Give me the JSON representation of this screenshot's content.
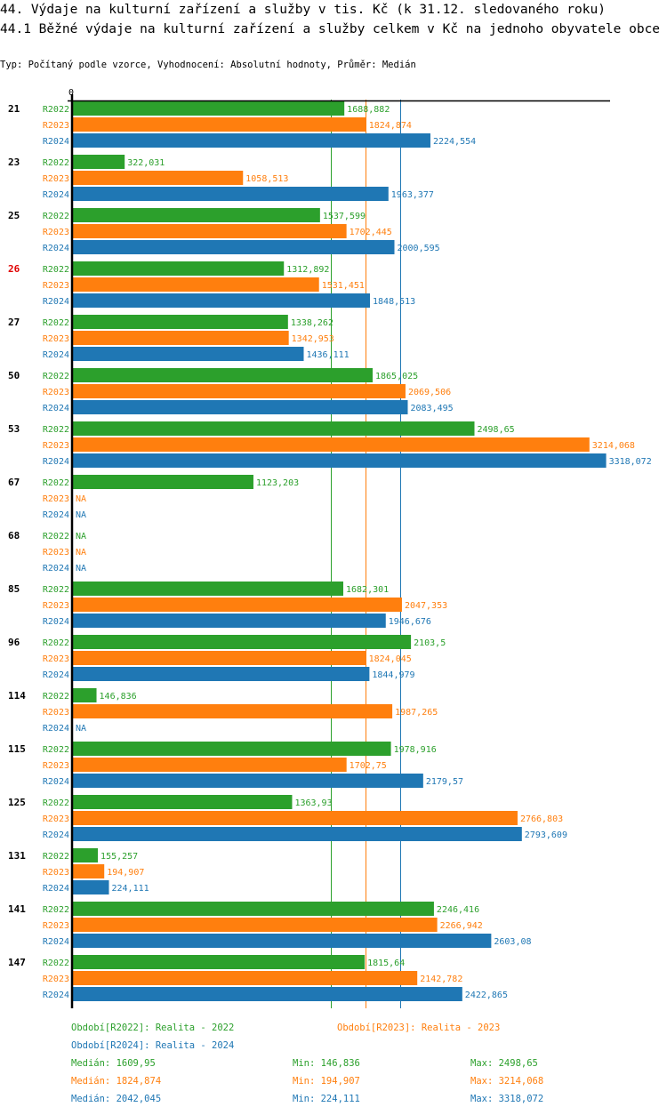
{
  "header": {
    "title": "44. Výdaje na kulturní zařízení a služby v tis. Kč (k 31.12. sledovaného roku)",
    "subtitle_title": "44.1 Běžné výdaje na kulturní zařízení a služby celkem v Kč na jednoho obyvatele obce",
    "info": "Typ: Počítaný podle vzorce, Vyhodnocení: Absolutní hodnoty, Průměr: Medián"
  },
  "colors": {
    "R2022": "#2ca02c",
    "R2023": "#ff7f0e",
    "R2024": "#1f77b4",
    "highlight_category": "#e00000",
    "axis": "#000000"
  },
  "chart_data": {
    "type": "bar",
    "orientation": "horizontal",
    "title": "44.1 Běžné výdaje na kulturní zařízení a služby celkem v Kč na jednoho obyvatele obce",
    "xlabel": "",
    "ylabel": "",
    "x_tick_labels": [
      "0"
    ],
    "xlim": [
      0,
      3318.072
    ],
    "grid": false,
    "highlighted_category": "26",
    "categories": [
      "21",
      "23",
      "25",
      "26",
      "27",
      "50",
      "53",
      "67",
      "68",
      "85",
      "96",
      "114",
      "115",
      "125",
      "131",
      "141",
      "147"
    ],
    "series": [
      {
        "name": "R2022",
        "label": "R2022",
        "values": [
          1688.882,
          322.031,
          1537.599,
          1312.892,
          1338.262,
          1865.025,
          2498.65,
          1123.203,
          null,
          1682.301,
          2103.5,
          146.836,
          1978.916,
          1363.93,
          155.257,
          2246.416,
          1815.64
        ],
        "display": [
          "1688,882",
          "322,031",
          "1537,599",
          "1312,892",
          "1338,262",
          "1865,025",
          "2498,65",
          "1123,203",
          "NA",
          "1682,301",
          "2103,5",
          "146,836",
          "1978,916",
          "1363,93",
          "155,257",
          "2246,416",
          "1815,64"
        ]
      },
      {
        "name": "R2023",
        "label": "R2023",
        "values": [
          1824.874,
          1058.513,
          1702.445,
          1531.451,
          1342.953,
          2069.506,
          3214.068,
          null,
          null,
          2047.353,
          1824.045,
          1987.265,
          1702.75,
          2766.803,
          194.907,
          2266.942,
          2142.782
        ],
        "display": [
          "1824,874",
          "1058,513",
          "1702,445",
          "1531,451",
          "1342,953",
          "2069,506",
          "3214,068",
          "NA",
          "NA",
          "2047,353",
          "1824,045",
          "1987,265",
          "1702,75",
          "2766,803",
          "194,907",
          "2266,942",
          "2142,782"
        ]
      },
      {
        "name": "R2024",
        "label": "R2024",
        "values": [
          2224.554,
          1963.377,
          2000.595,
          1848.513,
          1436.111,
          2083.495,
          3318.072,
          null,
          null,
          1946.676,
          1844.979,
          null,
          2179.57,
          2793.609,
          224.111,
          2603.08,
          2422.865
        ],
        "display": [
          "2224,554",
          "1963,377",
          "2000,595",
          "1848,513",
          "1436,111",
          "2083,495",
          "3318,072",
          "NA",
          "NA",
          "1946,676",
          "1844,979",
          "NA",
          "2179,57",
          "2793,609",
          "224,111",
          "2603,08",
          "2422,865"
        ]
      }
    ],
    "reference_lines": [
      {
        "series": "R2022",
        "type": "median",
        "value": 1609.95
      },
      {
        "series": "R2023",
        "type": "median",
        "value": 1824.874
      },
      {
        "series": "R2024",
        "type": "median",
        "value": 2042.045
      }
    ]
  },
  "legend": {
    "periods": [
      {
        "series": "R2022",
        "text": "Období[R2022]: Realita - 2022"
      },
      {
        "series": "R2023",
        "text": "Období[R2023]: Realita - 2023"
      },
      {
        "series": "R2024",
        "text": "Období[R2024]: Realita - 2024"
      }
    ],
    "stats": [
      {
        "series": "R2022",
        "median": "Medián: 1609,95",
        "min": "Min: 146,836",
        "max": "Max: 2498,65"
      },
      {
        "series": "R2023",
        "median": "Medián: 1824,874",
        "min": "Min: 194,907",
        "max": "Max: 3214,068"
      },
      {
        "series": "R2024",
        "median": "Medián: 2042,045",
        "min": "Min: 224,111",
        "max": "Max: 3318,072"
      }
    ]
  }
}
